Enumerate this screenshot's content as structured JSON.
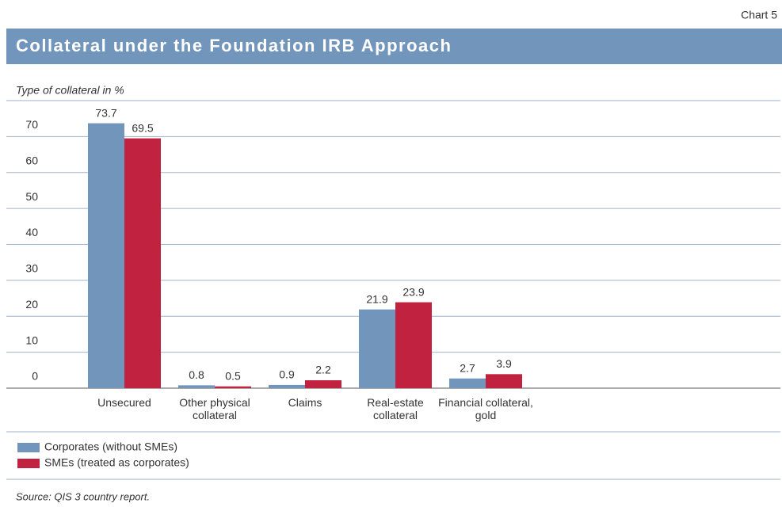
{
  "chart_data": {
    "type": "bar",
    "chart_number": "Chart 5",
    "title": "Collateral under the Foundation IRB Approach",
    "y_axis_label": "Type of collateral in %",
    "categories": [
      "Unsecured",
      "Other physical collateral",
      "Claims",
      "Real-estate collateral",
      "Financial collateral, gold"
    ],
    "series": [
      {
        "name": "Corporates (without SMEs)",
        "color": "#7295bb",
        "values": [
          73.7,
          0.8,
          0.9,
          21.9,
          2.7
        ]
      },
      {
        "name": "SMEs (treated as corporates)",
        "color": "#c0223f",
        "values": [
          69.5,
          0.5,
          2.2,
          23.9,
          3.9
        ]
      }
    ],
    "ylim": [
      0,
      80
    ],
    "yticks": [
      0,
      10,
      20,
      30,
      40,
      50,
      60,
      70
    ],
    "grid": true,
    "source": "Source: QIS 3 country report."
  }
}
